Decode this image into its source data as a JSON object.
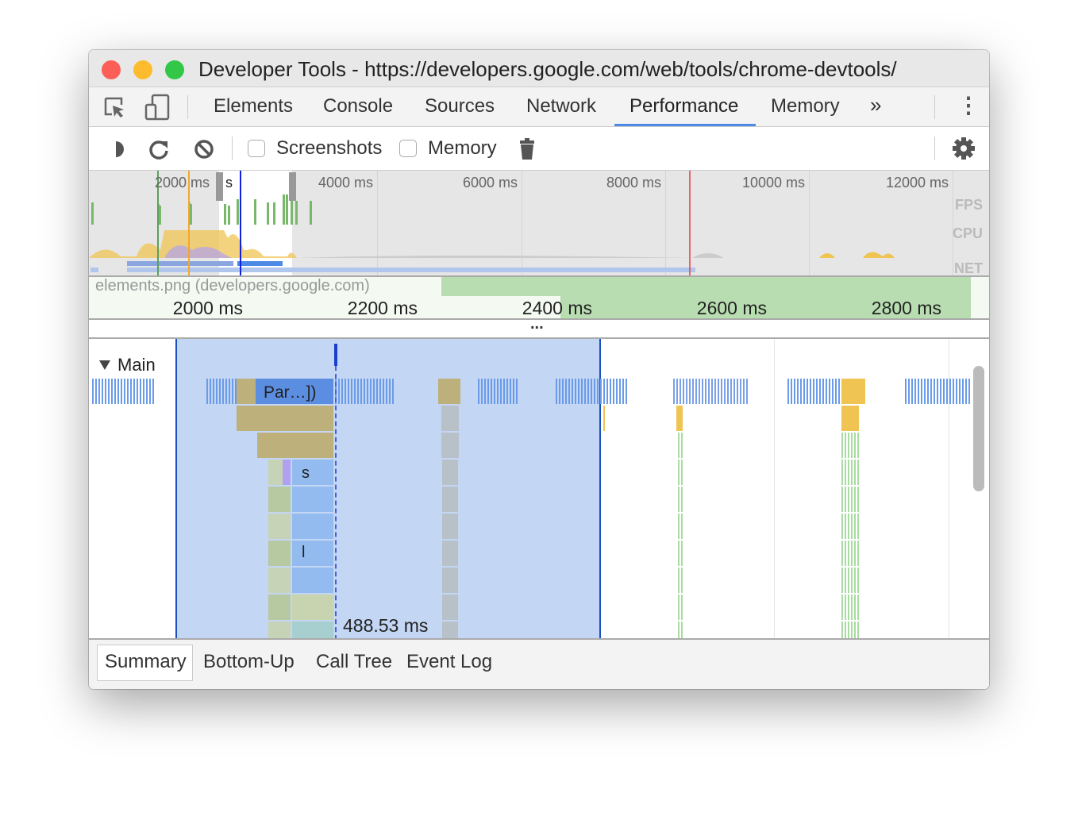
{
  "window": {
    "title": "Developer Tools - https://developers.google.com/web/tools/chrome-devtools/"
  },
  "tabs": [
    {
      "label": "Elements"
    },
    {
      "label": "Console"
    },
    {
      "label": "Sources"
    },
    {
      "label": "Network"
    },
    {
      "label": "Performance",
      "active": true
    },
    {
      "label": "Memory"
    }
  ],
  "icons": {
    "more_tabs": "»",
    "menu": "⋮",
    "inspect": "inspect-element-icon",
    "device": "device-toolbar-icon"
  },
  "toolbar": {
    "screenshots_label": "Screenshots",
    "screenshots_checked": false,
    "memory_label": "Memory",
    "memory_checked": false
  },
  "overview": {
    "ticks": [
      "2000 ms",
      "4000 ms",
      "6000 ms",
      "8000 ms",
      "10000 ms",
      "12000 ms"
    ],
    "track_labels": [
      "FPS",
      "CPU",
      "NET"
    ],
    "selection_overlap_text": "s"
  },
  "ruler": {
    "ticks": [
      "2000 ms",
      "2200 ms",
      "2400 ms",
      "2600 ms",
      "2800 ms"
    ],
    "network_request": "elements.png (developers.google.com)",
    "ellipsis": "..."
  },
  "flame": {
    "track": "Main",
    "events": [
      "Par…])",
      "s",
      "l"
    ],
    "selection_duration": "488.53 ms"
  },
  "bottom_tabs": [
    {
      "label": "Summary",
      "active": true
    },
    {
      "label": "Bottom-Up"
    },
    {
      "label": "Call Tree"
    },
    {
      "label": "Event Log"
    }
  ],
  "colors": {
    "accent": "#4d8ae6",
    "selection": "#c3d6f3",
    "scripting": "#f0c453",
    "rendering": "#b0a1f0",
    "painting": "#a8dca0",
    "loading": "#8ab4f0"
  }
}
